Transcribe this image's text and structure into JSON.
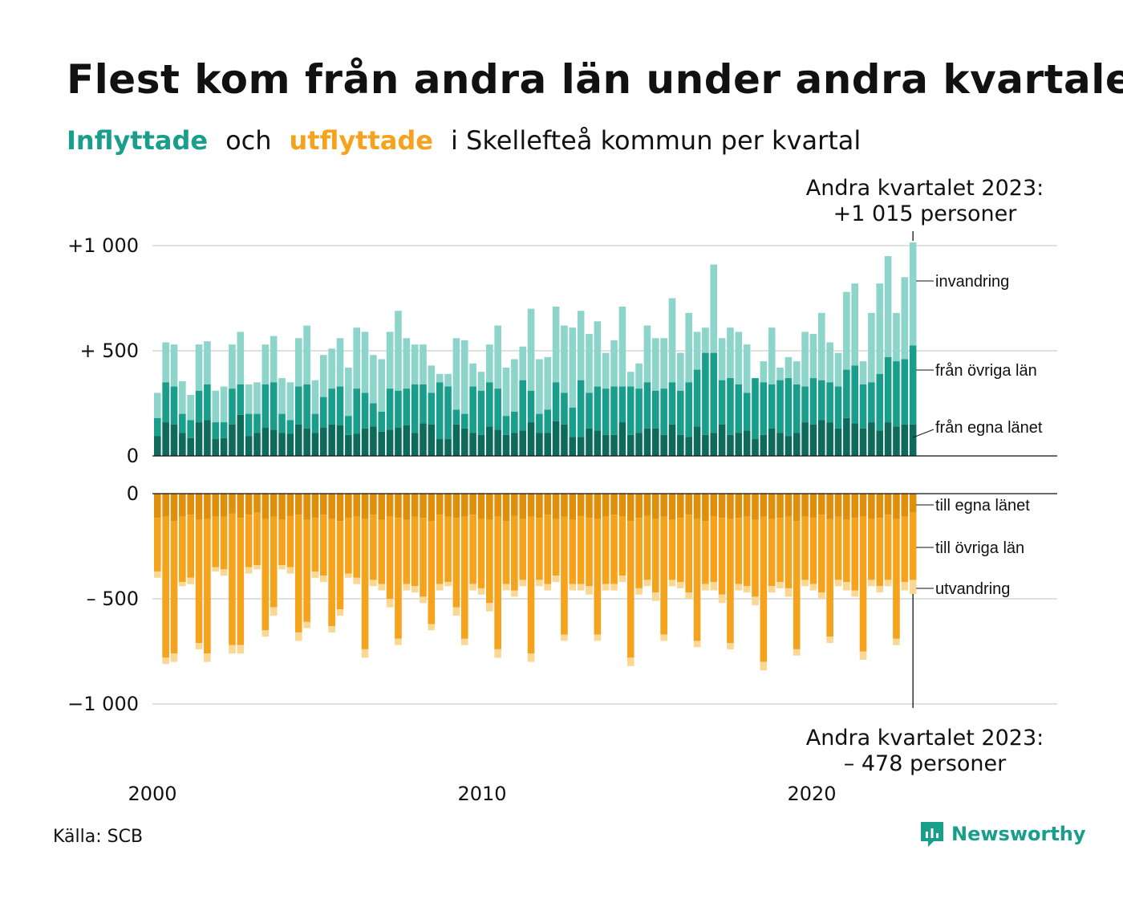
{
  "title": "Flest kom från andra län under andra kvartalet",
  "subtitle": {
    "in_word": "Inflyttade",
    "and_word": "och",
    "out_word": "utflyttade",
    "rest": "i Skellefteå kommun per kvartal"
  },
  "annotations": {
    "top_line1": "Andra kvartalet 2023:",
    "top_line2": "+1 015 personer",
    "bottom_line1": "Andra kvartalet 2023:",
    "bottom_line2": "–  478 personer"
  },
  "source": "Källa: SCB",
  "brand": "Newsworthy",
  "colors": {
    "in_local": "#0e6b5c",
    "in_other": "#1a9e8c",
    "in_abroad": "#8dd5cb",
    "out_local": "#e08f0c",
    "out_other": "#f5a21c",
    "out_abroad": "#fad792",
    "grid": "#e0e0e0",
    "brand": "#1a9e8c"
  },
  "chart_data": {
    "type": "bar",
    "stacked": true,
    "x_unit": "quarter",
    "x_start": "2000 Q1",
    "x_end": "2023 Q2",
    "x_ticks": [
      "2000",
      "2010",
      "2020"
    ],
    "y_ticks": [
      "+1 000",
      "+  500",
      "0",
      "0",
      "–  500",
      "−1 000"
    ],
    "ylim_top": [
      0,
      1000
    ],
    "ylim_bottom": [
      -1000,
      0
    ],
    "grid": true,
    "series_labels": {
      "in_abroad": "invandring",
      "in_other": "från övriga län",
      "in_local": "från egna länet",
      "out_local": "till egna länet",
      "out_other": "till övriga län",
      "out_abroad": "utvandring"
    },
    "inflow_totals": [
      300,
      540,
      530,
      355,
      290,
      530,
      545,
      310,
      330,
      530,
      590,
      340,
      350,
      530,
      570,
      370,
      350,
      560,
      620,
      360,
      480,
      510,
      560,
      420,
      610,
      590,
      480,
      460,
      590,
      690,
      560,
      530,
      530,
      430,
      390,
      390,
      560,
      550,
      440,
      400,
      530,
      620,
      420,
      460,
      520,
      700,
      460,
      470,
      710,
      620,
      610,
      690,
      580,
      640,
      490,
      550,
      710,
      400,
      440,
      620,
      560,
      560,
      750,
      490,
      680,
      590,
      610,
      910,
      560,
      610,
      590,
      530,
      370,
      450,
      610,
      420,
      470,
      450,
      590,
      580,
      680,
      540,
      490,
      780,
      820,
      450,
      680,
      820,
      950,
      680,
      850,
      1015
    ],
    "inflow_other": [
      180,
      350,
      330,
      200,
      170,
      310,
      340,
      160,
      160,
      320,
      340,
      200,
      200,
      340,
      350,
      200,
      170,
      330,
      340,
      200,
      280,
      320,
      330,
      190,
      320,
      300,
      250,
      210,
      320,
      310,
      320,
      340,
      340,
      300,
      350,
      330,
      220,
      200,
      330,
      310,
      350,
      320,
      190,
      210,
      360,
      310,
      200,
      220,
      350,
      300,
      230,
      360,
      300,
      330,
      320,
      330,
      330,
      330,
      320,
      350,
      310,
      320,
      350,
      310,
      350,
      410,
      490,
      490,
      360,
      370,
      340,
      300,
      370,
      350,
      340,
      360,
      370,
      340,
      330,
      370,
      360,
      350,
      330,
      410,
      430,
      340,
      350,
      390,
      470,
      450,
      460,
      525
    ],
    "inflow_local": [
      95,
      160,
      150,
      110,
      85,
      160,
      170,
      80,
      85,
      150,
      195,
      95,
      110,
      135,
      125,
      110,
      105,
      150,
      130,
      110,
      135,
      150,
      145,
      100,
      105,
      130,
      140,
      115,
      125,
      135,
      145,
      110,
      155,
      150,
      80,
      80,
      150,
      130,
      110,
      100,
      140,
      125,
      100,
      110,
      120,
      160,
      110,
      110,
      165,
      150,
      90,
      90,
      130,
      120,
      100,
      100,
      160,
      100,
      110,
      130,
      130,
      100,
      150,
      100,
      90,
      140,
      100,
      110,
      150,
      100,
      110,
      120,
      80,
      100,
      130,
      110,
      95,
      110,
      160,
      150,
      170,
      160,
      130,
      180,
      155,
      130,
      160,
      120,
      160,
      140,
      150,
      150
    ],
    "outflow_totals": [
      -400,
      -810,
      -800,
      -440,
      -430,
      -740,
      -800,
      -370,
      -390,
      -760,
      -760,
      -380,
      -360,
      -680,
      -580,
      -360,
      -380,
      -700,
      -640,
      -400,
      -420,
      -660,
      -580,
      -400,
      -430,
      -780,
      -440,
      -460,
      -540,
      -720,
      -460,
      -470,
      -520,
      -650,
      -460,
      -440,
      -580,
      -720,
      -460,
      -480,
      -560,
      -780,
      -460,
      -490,
      -440,
      -800,
      -440,
      -460,
      -420,
      -700,
      -460,
      -460,
      -480,
      -700,
      -460,
      -460,
      -420,
      -820,
      -480,
      -440,
      -510,
      -700,
      -440,
      -450,
      -500,
      -730,
      -460,
      -460,
      -520,
      -740,
      -460,
      -470,
      -530,
      -840,
      -470,
      -450,
      -490,
      -770,
      -440,
      -460,
      -500,
      -710,
      -440,
      -460,
      -490,
      -790,
      -440,
      -470,
      -440,
      -720,
      -460,
      -478
    ],
    "outflow_local": [
      -115,
      -110,
      -130,
      -110,
      -100,
      -125,
      -120,
      -110,
      -110,
      -95,
      -115,
      -100,
      -90,
      -120,
      -110,
      -125,
      -105,
      -100,
      -125,
      -115,
      -100,
      -120,
      -130,
      -115,
      -110,
      -120,
      -100,
      -125,
      -110,
      -115,
      -125,
      -110,
      -115,
      -130,
      -100,
      -110,
      -115,
      -110,
      -100,
      -120,
      -125,
      -110,
      -130,
      -105,
      -120,
      -110,
      -115,
      -100,
      -120,
      -110,
      -125,
      -105,
      -115,
      -120,
      -110,
      -100,
      -110,
      -130,
      -115,
      -105,
      -120,
      -110,
      -125,
      -115,
      -100,
      -120,
      -130,
      -110,
      -115,
      -120,
      -115,
      -110,
      -125,
      -110,
      -120,
      -115,
      -110,
      -130,
      -110,
      -115,
      -100,
      -120,
      -110,
      -125,
      -115,
      -110,
      -120,
      -115,
      -100,
      -120,
      -110,
      -90
    ],
    "outflow_other_end": [
      -370,
      -780,
      -760,
      -420,
      -400,
      -710,
      -760,
      -350,
      -360,
      -720,
      -720,
      -350,
      -340,
      -650,
      -540,
      -340,
      -350,
      -660,
      -610,
      -370,
      -390,
      -630,
      -550,
      -380,
      -400,
      -740,
      -410,
      -430,
      -500,
      -690,
      -430,
      -440,
      -490,
      -620,
      -430,
      -420,
      -540,
      -690,
      -430,
      -450,
      -520,
      -740,
      -430,
      -460,
      -410,
      -760,
      -410,
      -430,
      -390,
      -670,
      -430,
      -430,
      -440,
      -670,
      -430,
      -430,
      -390,
      -780,
      -450,
      -410,
      -470,
      -670,
      -410,
      -420,
      -470,
      -700,
      -430,
      -420,
      -480,
      -710,
      -430,
      -440,
      -490,
      -800,
      -440,
      -420,
      -450,
      -740,
      -410,
      -430,
      -470,
      -680,
      -410,
      -420,
      -460,
      -750,
      -410,
      -440,
      -410,
      -690,
      -420,
      -410
    ]
  }
}
